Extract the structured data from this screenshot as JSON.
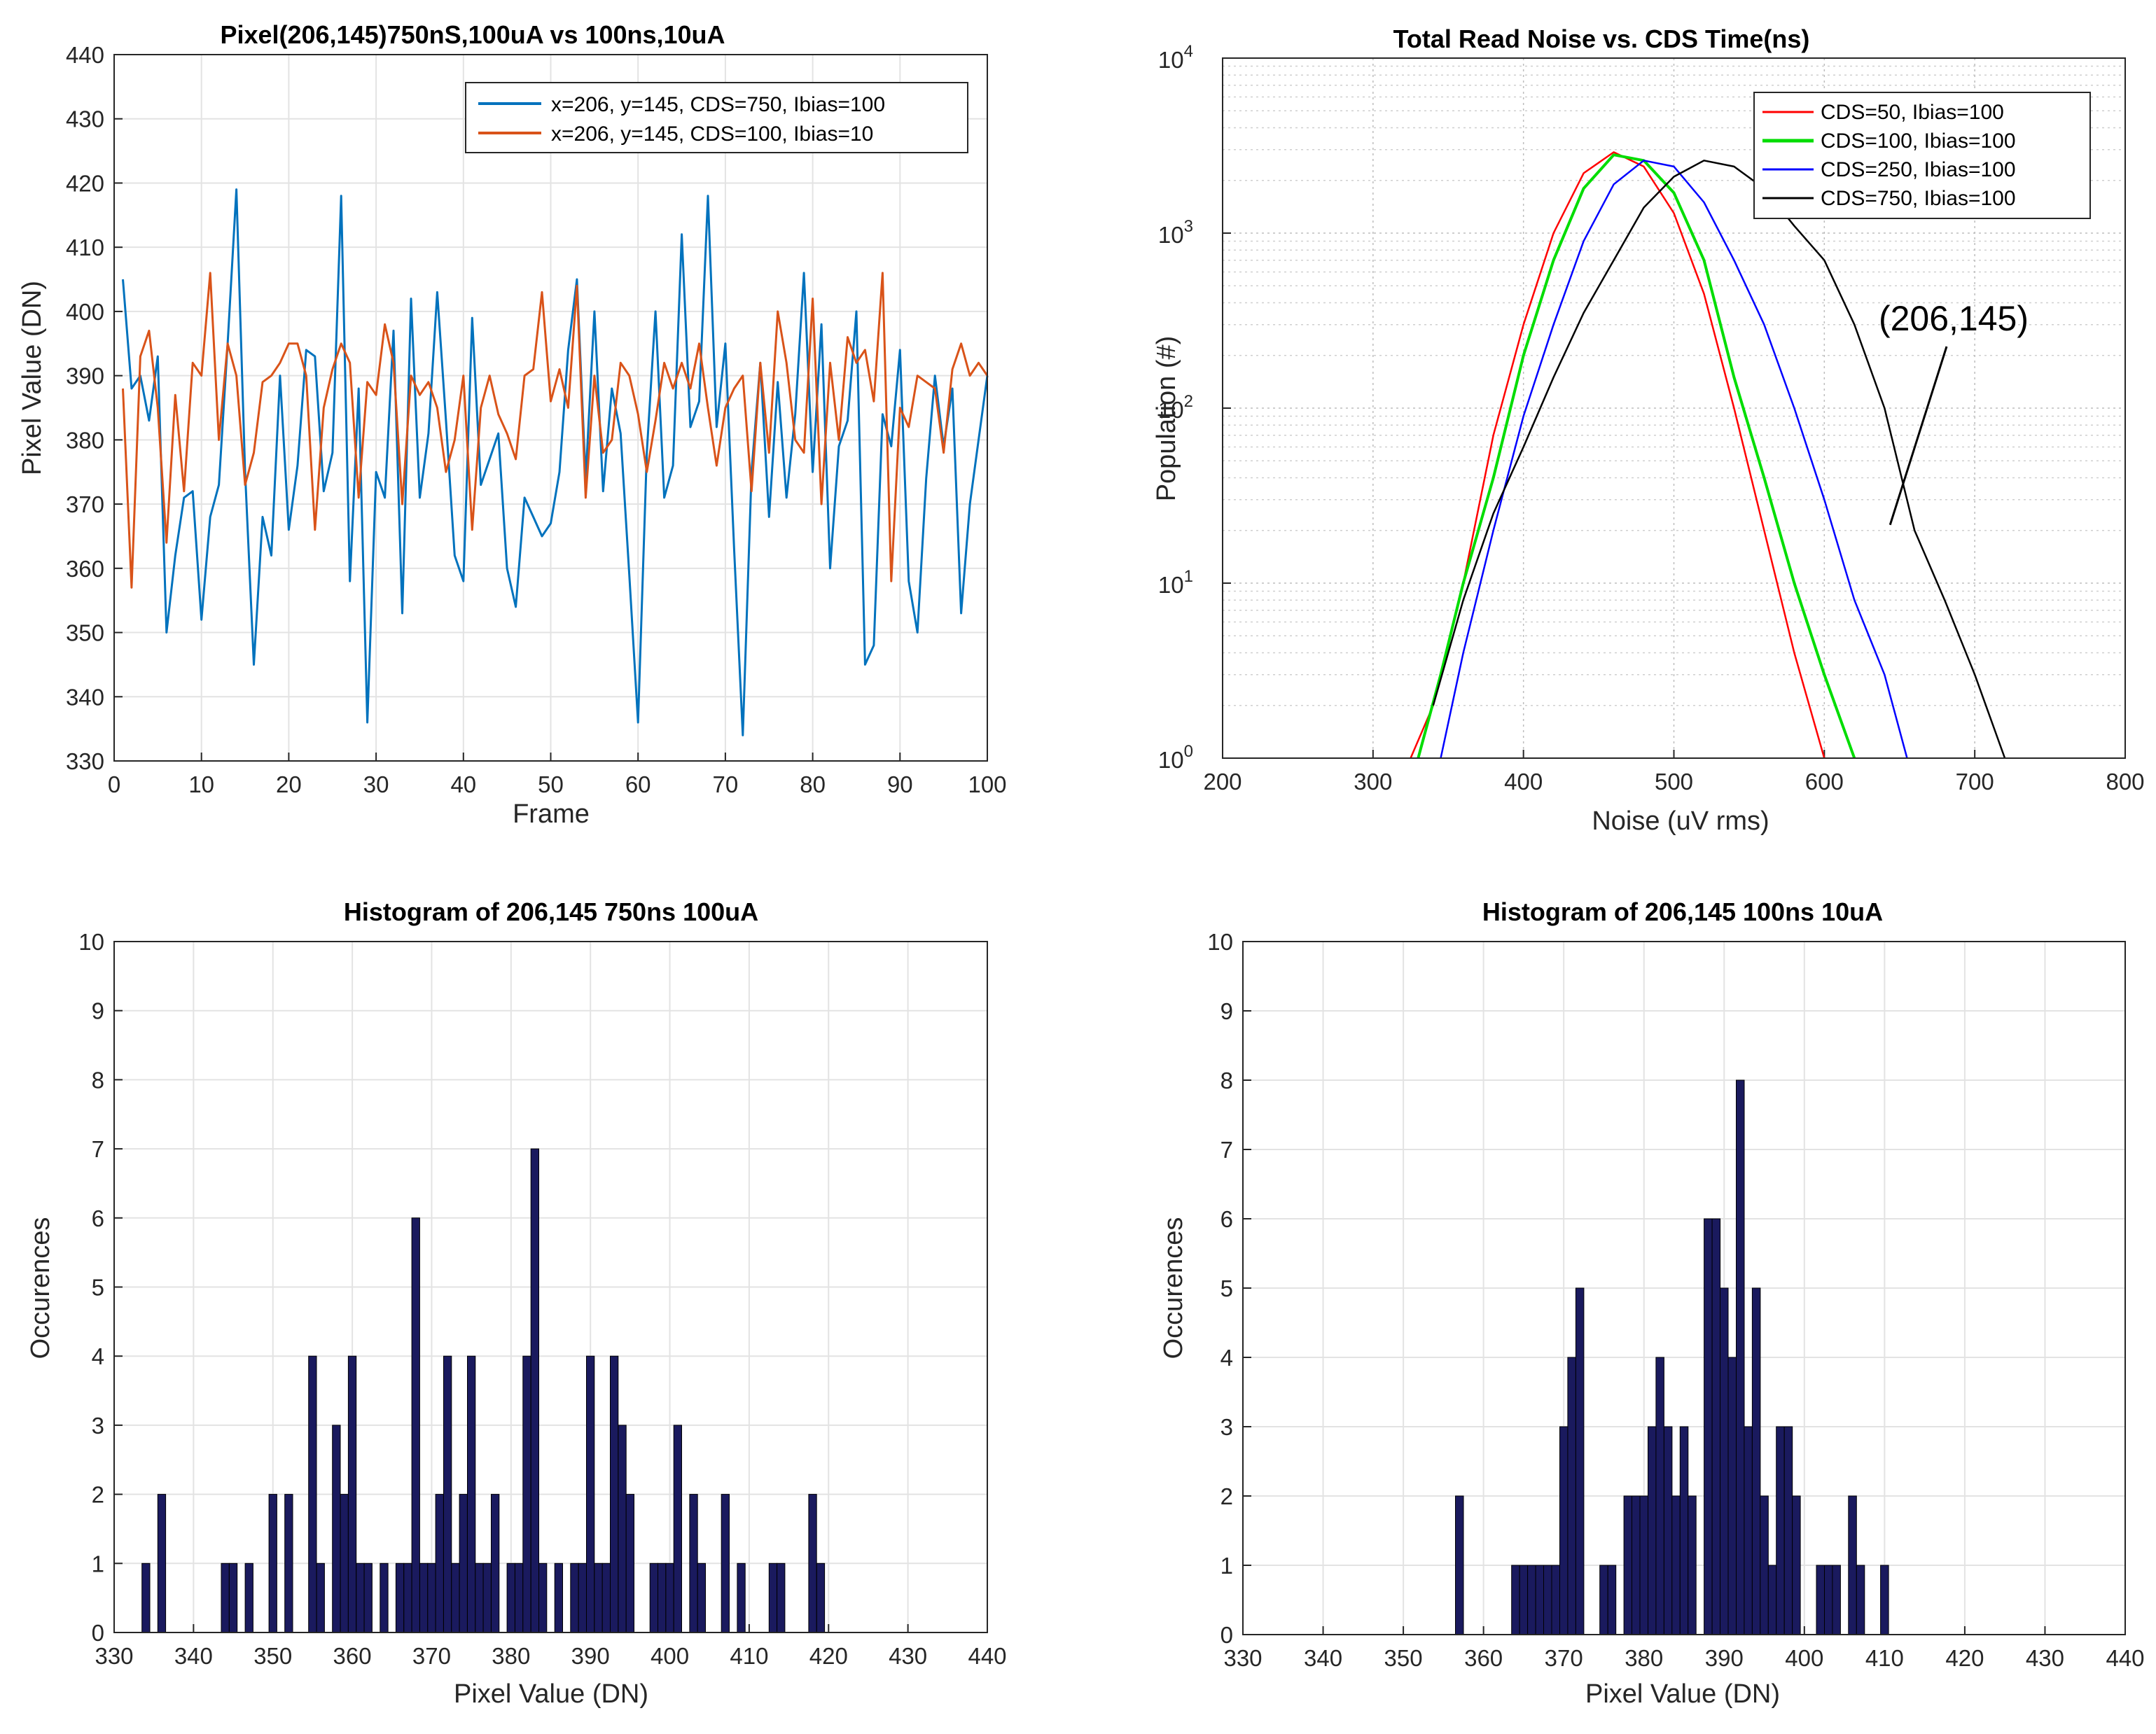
{
  "chart_data": [
    {
      "type": "line",
      "title": "Pixel(206,145)750nS,100uA vs 100ns,10uA",
      "xlabel": "Frame",
      "ylabel": "Pixel Value (DN)",
      "xlim": [
        0,
        100
      ],
      "ylim": [
        330,
        440
      ],
      "xticks": [
        "0",
        "10",
        "20",
        "30",
        "40",
        "50",
        "60",
        "70",
        "80",
        "90",
        "100"
      ],
      "yticks": [
        "330",
        "340",
        "350",
        "360",
        "370",
        "380",
        "390",
        "400",
        "410",
        "420",
        "430",
        "440"
      ],
      "grid": true,
      "legend_position": "top-right",
      "series": [
        {
          "name": "x=206, y=145, CDS=750, Ibias=100",
          "color": "#0072BD",
          "x": [
            1,
            2,
            3,
            4,
            5,
            6,
            7,
            8,
            9,
            10,
            11,
            12,
            13,
            14,
            15,
            16,
            17,
            18,
            19,
            20,
            21,
            22,
            23,
            24,
            25,
            26,
            27,
            28,
            29,
            30,
            31,
            32,
            33,
            34,
            35,
            36,
            37,
            38,
            39,
            40,
            41,
            42,
            43,
            44,
            45,
            46,
            47,
            48,
            49,
            50,
            51,
            52,
            53,
            54,
            55,
            56,
            57,
            58,
            59,
            60,
            61,
            62,
            63,
            64,
            65,
            66,
            67,
            68,
            69,
            70,
            71,
            72,
            73,
            74,
            75,
            76,
            77,
            78,
            79,
            80,
            81,
            82,
            83,
            84,
            85,
            86,
            87,
            88,
            89,
            90,
            91,
            92,
            93,
            94,
            95,
            96,
            97,
            98,
            99,
            100
          ],
          "values": [
            405,
            388,
            390,
            383,
            393,
            350,
            362,
            371,
            372,
            352,
            368,
            373,
            395,
            419,
            375,
            345,
            368,
            362,
            390,
            366,
            376,
            394,
            393,
            372,
            378,
            418,
            358,
            388,
            336,
            375,
            371,
            397,
            353,
            402,
            371,
            381,
            403,
            383,
            362,
            358,
            399,
            373,
            377,
            381,
            360,
            354,
            371,
            368,
            365,
            367,
            375,
            394,
            405,
            374,
            400,
            372,
            388,
            381,
            359,
            336,
            378,
            400,
            371,
            376,
            412,
            382,
            386,
            418,
            382,
            395,
            363,
            334,
            375,
            392,
            368,
            389,
            371,
            384,
            406,
            375,
            398,
            360,
            379,
            383,
            400,
            345,
            348,
            384,
            379,
            394,
            358,
            350,
            374,
            390,
            379,
            388,
            353,
            370,
            380,
            390
          ]
        },
        {
          "name": "x=206, y=145, CDS=100, Ibias=10",
          "color": "#D95319",
          "x": [
            1,
            2,
            3,
            4,
            5,
            6,
            7,
            8,
            9,
            10,
            11,
            12,
            13,
            14,
            15,
            16,
            17,
            18,
            19,
            20,
            21,
            22,
            23,
            24,
            25,
            26,
            27,
            28,
            29,
            30,
            31,
            32,
            33,
            34,
            35,
            36,
            37,
            38,
            39,
            40,
            41,
            42,
            43,
            44,
            45,
            46,
            47,
            48,
            49,
            50,
            51,
            52,
            53,
            54,
            55,
            56,
            57,
            58,
            59,
            60,
            61,
            62,
            63,
            64,
            65,
            66,
            67,
            68,
            69,
            70,
            71,
            72,
            73,
            74,
            75,
            76,
            77,
            78,
            79,
            80,
            81,
            82,
            83,
            84,
            85,
            86,
            87,
            88,
            89,
            90,
            91,
            92,
            93,
            94,
            95,
            96,
            97,
            98,
            99,
            100
          ],
          "values": [
            388,
            357,
            393,
            397,
            385,
            364,
            387,
            372,
            392,
            390,
            406,
            380,
            395,
            390,
            373,
            378,
            389,
            390,
            392,
            395,
            395,
            390,
            366,
            385,
            391,
            395,
            392,
            371,
            389,
            387,
            398,
            392,
            370,
            390,
            387,
            389,
            385,
            375,
            380,
            390,
            366,
            385,
            390,
            384,
            381,
            377,
            390,
            391,
            403,
            386,
            391,
            385,
            404,
            371,
            390,
            378,
            380,
            392,
            390,
            384,
            375,
            383,
            392,
            388,
            392,
            388,
            395,
            385,
            376,
            385,
            388,
            390,
            372,
            392,
            378,
            400,
            392,
            380,
            378,
            402,
            370,
            392,
            380,
            396,
            392,
            394,
            386,
            406,
            358,
            385,
            382,
            390,
            389,
            388,
            378,
            391,
            395,
            390,
            392,
            390
          ]
        }
      ]
    },
    {
      "type": "line",
      "title": "Total Read Noise vs. CDS Time(ns)",
      "xlabel": "Noise (uV rms)",
      "ylabel": "Population (#)",
      "xlim": [
        200,
        800
      ],
      "ylim": [
        1,
        10000
      ],
      "yscale": "log",
      "xticks": [
        "200",
        "300",
        "400",
        "500",
        "600",
        "700",
        "800"
      ],
      "ytick_bases": [
        "10",
        "10",
        "10",
        "10",
        "10"
      ],
      "ytick_exponents": [
        "0",
        "1",
        "2",
        "3",
        "4"
      ],
      "grid": true,
      "legend_position": "top-right",
      "series": [
        {
          "name": "CDS=50, Ibias=100",
          "color": "#FF0000",
          "x": [
            325,
            340,
            360,
            380,
            400,
            420,
            440,
            460,
            480,
            500,
            520,
            540,
            560,
            580,
            600
          ],
          "values": [
            1,
            2,
            10,
            70,
            300,
            1000,
            2200,
            2900,
            2400,
            1300,
            450,
            100,
            20,
            4,
            1
          ]
        },
        {
          "name": "CDS=100, Ibias=100",
          "color": "#00DD00",
          "x": [
            330,
            345,
            360,
            380,
            400,
            420,
            440,
            460,
            480,
            500,
            520,
            540,
            560,
            580,
            600,
            620
          ],
          "values": [
            1,
            3,
            10,
            40,
            200,
            700,
            1800,
            2800,
            2600,
            1700,
            700,
            150,
            40,
            10,
            3,
            1
          ]
        },
        {
          "name": "CDS=250, Ibias=100",
          "color": "#0000FF",
          "x": [
            345,
            360,
            380,
            400,
            420,
            440,
            460,
            480,
            500,
            520,
            540,
            560,
            580,
            600,
            620,
            640,
            655
          ],
          "values": [
            1,
            4,
            20,
            90,
            300,
            900,
            1900,
            2600,
            2400,
            1500,
            700,
            300,
            100,
            30,
            8,
            3,
            1
          ]
        },
        {
          "name": "CDS=750, Ibias=100",
          "color": "#000000",
          "x": [
            340,
            360,
            380,
            400,
            420,
            440,
            460,
            480,
            500,
            520,
            540,
            560,
            580,
            600,
            620,
            640,
            660,
            680,
            700,
            720
          ],
          "values": [
            2,
            8,
            25,
            60,
            150,
            350,
            700,
            1400,
            2100,
            2600,
            2400,
            1800,
            1100,
            700,
            300,
            100,
            20,
            8,
            3,
            1
          ]
        }
      ],
      "annotation": {
        "text": "(206,145)",
        "target": [
          640,
          20
        ]
      }
    },
    {
      "type": "bar",
      "title": "Histogram of 206,145 750ns 100uA",
      "xlabel": "Pixel Value (DN)",
      "ylabel": "Occurences",
      "xlim": [
        330,
        440
      ],
      "ylim": [
        0,
        10
      ],
      "xticks": [
        "330",
        "340",
        "350",
        "360",
        "370",
        "380",
        "390",
        "400",
        "410",
        "420",
        "430",
        "440"
      ],
      "yticks": [
        "0",
        "1",
        "2",
        "3",
        "4",
        "5",
        "6",
        "7",
        "8",
        "9",
        "10"
      ],
      "grid": true,
      "bar_color": "#1A1A5E",
      "x": [
        334,
        336,
        344,
        345,
        347,
        350,
        352,
        355,
        356,
        358,
        359,
        360,
        361,
        362,
        364,
        366,
        367,
        368,
        369,
        370,
        371,
        372,
        373,
        374,
        375,
        376,
        377,
        378,
        380,
        381,
        382,
        383,
        384,
        386,
        388,
        389,
        390,
        391,
        392,
        393,
        394,
        395,
        398,
        399,
        400,
        401,
        403,
        404,
        407,
        409,
        413,
        414,
        418,
        419
      ],
      "values": [
        1,
        2,
        1,
        1,
        1,
        2,
        2,
        4,
        1,
        3,
        2,
        4,
        1,
        1,
        1,
        1,
        1,
        6,
        1,
        1,
        2,
        4,
        1,
        2,
        4,
        1,
        1,
        2,
        1,
        1,
        4,
        7,
        1,
        1,
        1,
        1,
        4,
        1,
        1,
        4,
        3,
        2,
        1,
        1,
        1,
        3,
        2,
        1,
        2,
        1,
        1,
        1,
        2,
        1
      ]
    },
    {
      "type": "bar",
      "title": "Histogram of 206,145 100ns 10uA",
      "xlabel": "Pixel Value (DN)",
      "ylabel": "Occurences",
      "xlim": [
        330,
        440
      ],
      "ylim": [
        0,
        10
      ],
      "xticks": [
        "330",
        "340",
        "350",
        "360",
        "370",
        "380",
        "390",
        "400",
        "410",
        "420",
        "430",
        "440"
      ],
      "yticks": [
        "0",
        "1",
        "2",
        "3",
        "4",
        "5",
        "6",
        "7",
        "8",
        "9",
        "10"
      ],
      "grid": true,
      "bar_color": "#1A1A5E",
      "x": [
        357,
        364,
        365,
        366,
        367,
        368,
        369,
        370,
        371,
        372,
        375,
        376,
        378,
        379,
        380,
        381,
        382,
        383,
        384,
        385,
        386,
        388,
        389,
        390,
        391,
        392,
        393,
        394,
        395,
        396,
        397,
        398,
        399,
        402,
        403,
        404,
        406,
        407,
        410
      ],
      "values": [
        2,
        1,
        1,
        1,
        1,
        1,
        1,
        3,
        4,
        5,
        1,
        1,
        2,
        2,
        2,
        3,
        4,
        3,
        2,
        3,
        2,
        6,
        6,
        5,
        4,
        8,
        3,
        5,
        2,
        1,
        3,
        3,
        2,
        1,
        1,
        1,
        2,
        1,
        1
      ]
    }
  ]
}
